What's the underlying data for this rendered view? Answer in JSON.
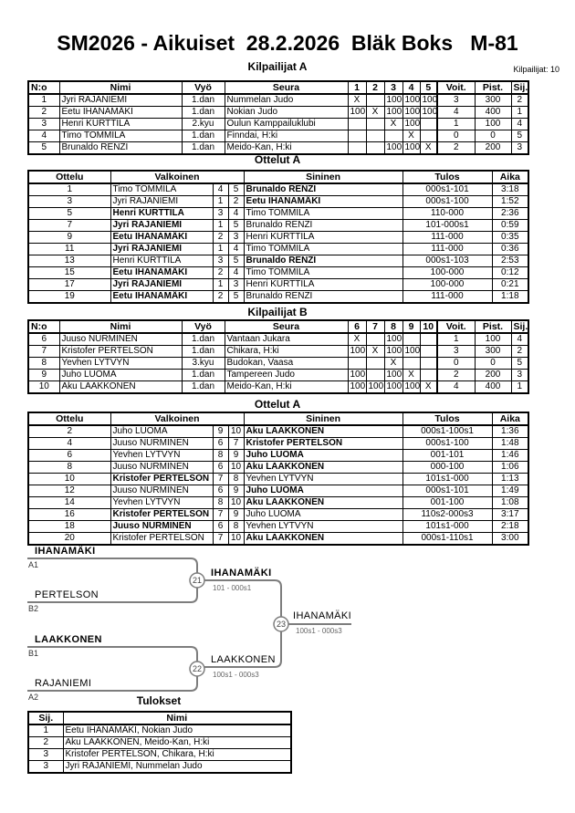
{
  "page": {
    "title": "SM2026 - Aikuiset  28.2.2026  Bläk Boks   M-81",
    "competitors_count_label": "Kilpailijat: 10"
  },
  "pool_a": {
    "title": "Kilpailijat A",
    "headers": [
      "N:o",
      "Nimi",
      "Vyö",
      "Seura",
      "1",
      "2",
      "3",
      "4",
      "5",
      "Voit.",
      "Pist.",
      "Sij."
    ],
    "rows": [
      {
        "no": "1",
        "name": "Jyri RAJANIEMI",
        "belt": "1.dan",
        "club": "Nummelan Judo",
        "r": [
          "X",
          "",
          "100",
          "100",
          "100"
        ],
        "wins": "3",
        "points": "300",
        "place": "2"
      },
      {
        "no": "2",
        "name": "Eetu IHANAMÄKI",
        "belt": "1.dan",
        "club": "Nokian Judo",
        "r": [
          "100",
          "X",
          "100",
          "100",
          "100"
        ],
        "wins": "4",
        "points": "400",
        "place": "1"
      },
      {
        "no": "3",
        "name": "Henri KURTTILA",
        "belt": "2.kyu",
        "club": "Oulun Kamppailuklubi",
        "r": [
          "",
          "",
          "X",
          "100",
          ""
        ],
        "wins": "1",
        "points": "100",
        "place": "4"
      },
      {
        "no": "4",
        "name": "Timo TOMMILA",
        "belt": "1.dan",
        "club": "Finndai, H:ki",
        "r": [
          "",
          "",
          "",
          "X",
          ""
        ],
        "wins": "0",
        "points": "0",
        "place": "5"
      },
      {
        "no": "5",
        "name": "Brunaldo RENZI",
        "belt": "1.dan",
        "club": "Meido-Kan, H:ki",
        "r": [
          "",
          "",
          "100",
          "100",
          "X"
        ],
        "wins": "2",
        "points": "200",
        "place": "3"
      }
    ]
  },
  "matches_a": {
    "title": "Ottelut A",
    "headers": [
      "Ottelu",
      "Valkoinen",
      "Sininen",
      "Tulos",
      "Aika"
    ],
    "rows": [
      {
        "no": "1",
        "white": "Timo TOMMILA",
        "white_win": false,
        "wno": "4",
        "bno": "5",
        "blue": "Brunaldo RENZI",
        "blue_win": true,
        "result": "000s1-101",
        "time": "3:18"
      },
      {
        "no": "3",
        "white": "Jyri RAJANIEMI",
        "white_win": false,
        "wno": "1",
        "bno": "2",
        "blue": "Eetu IHANAMÄKI",
        "blue_win": true,
        "result": "000s1-100",
        "time": "1:52"
      },
      {
        "no": "5",
        "white": "Henri KURTTILA",
        "white_win": true,
        "wno": "3",
        "bno": "4",
        "blue": "Timo TOMMILA",
        "blue_win": false,
        "result": "110-000",
        "time": "2:36"
      },
      {
        "no": "7",
        "white": "Jyri RAJANIEMI",
        "white_win": true,
        "wno": "1",
        "bno": "5",
        "blue": "Brunaldo RENZI",
        "blue_win": false,
        "result": "101-000s1",
        "time": "0:59"
      },
      {
        "no": "9",
        "white": "Eetu IHANAMÄKI",
        "white_win": true,
        "wno": "2",
        "bno": "3",
        "blue": "Henri KURTTILA",
        "blue_win": false,
        "result": "111-000",
        "time": "0:35"
      },
      {
        "no": "11",
        "white": "Jyri RAJANIEMI",
        "white_win": true,
        "wno": "1",
        "bno": "4",
        "blue": "Timo TOMMILA",
        "blue_win": false,
        "result": "111-000",
        "time": "0:36"
      },
      {
        "no": "13",
        "white": "Henri KURTTILA",
        "white_win": false,
        "wno": "3",
        "bno": "5",
        "blue": "Brunaldo RENZI",
        "blue_win": true,
        "result": "000s1-103",
        "time": "2:53"
      },
      {
        "no": "15",
        "white": "Eetu IHANAMÄKI",
        "white_win": true,
        "wno": "2",
        "bno": "4",
        "blue": "Timo TOMMILA",
        "blue_win": false,
        "result": "100-000",
        "time": "0:12"
      },
      {
        "no": "17",
        "white": "Jyri RAJANIEMI",
        "white_win": true,
        "wno": "1",
        "bno": "3",
        "blue": "Henri KURTTILA",
        "blue_win": false,
        "result": "100-000",
        "time": "0:21"
      },
      {
        "no": "19",
        "white": "Eetu IHANAMÄKI",
        "white_win": true,
        "wno": "2",
        "bno": "5",
        "blue": "Brunaldo RENZI",
        "blue_win": false,
        "result": "111-000",
        "time": "1:18"
      }
    ]
  },
  "pool_b": {
    "title": "Kilpailijat B",
    "headers": [
      "N:o",
      "Nimi",
      "Vyö",
      "Seura",
      "6",
      "7",
      "8",
      "9",
      "10",
      "Voit.",
      "Pist.",
      "Sij."
    ],
    "rows": [
      {
        "no": "6",
        "name": "Juuso NURMINEN",
        "belt": "1.dan",
        "club": "Vantaan Jukara",
        "r": [
          "X",
          "",
          "100",
          "",
          ""
        ],
        "wins": "1",
        "points": "100",
        "place": "4"
      },
      {
        "no": "7",
        "name": "Kristofer PERTELSON",
        "belt": "1.dan",
        "club": "Chikara, H:ki",
        "r": [
          "100",
          "X",
          "100",
          "100",
          ""
        ],
        "wins": "3",
        "points": "300",
        "place": "2"
      },
      {
        "no": "8",
        "name": "Yevhen LYTVYN",
        "belt": "3.kyu",
        "club": "Budokan, Vaasa",
        "r": [
          "",
          "",
          "X",
          "",
          ""
        ],
        "wins": "0",
        "points": "0",
        "place": "5"
      },
      {
        "no": "9",
        "name": "Juho LUOMA",
        "belt": "1.dan",
        "club": "Tampereen Judo",
        "r": [
          "100",
          "",
          "100",
          "X",
          ""
        ],
        "wins": "2",
        "points": "200",
        "place": "3"
      },
      {
        "no": "10",
        "name": "Aku LAAKKONEN",
        "belt": "1.dan",
        "club": "Meido-Kan, H:ki",
        "r": [
          "100",
          "100",
          "100",
          "100",
          "X"
        ],
        "wins": "4",
        "points": "400",
        "place": "1"
      }
    ]
  },
  "matches_b": {
    "title": "Ottelut A",
    "headers": [
      "Ottelu",
      "Valkoinen",
      "Sininen",
      "Tulos",
      "Aika"
    ],
    "rows": [
      {
        "no": "2",
        "white": "Juho LUOMA",
        "white_win": false,
        "wno": "9",
        "bno": "10",
        "blue": "Aku LAAKKONEN",
        "blue_win": true,
        "result": "000s1-100s1",
        "time": "1:36"
      },
      {
        "no": "4",
        "white": "Juuso NURMINEN",
        "white_win": false,
        "wno": "6",
        "bno": "7",
        "blue": "Kristofer PERTELSON",
        "blue_win": true,
        "result": "000s1-100",
        "time": "1:48"
      },
      {
        "no": "6",
        "white": "Yevhen LYTVYN",
        "white_win": false,
        "wno": "8",
        "bno": "9",
        "blue": "Juho LUOMA",
        "blue_win": true,
        "result": "001-101",
        "time": "1:46"
      },
      {
        "no": "8",
        "white": "Juuso NURMINEN",
        "white_win": false,
        "wno": "6",
        "bno": "10",
        "blue": "Aku LAAKKONEN",
        "blue_win": true,
        "result": "000-100",
        "time": "1:06"
      },
      {
        "no": "10",
        "white": "Kristofer PERTELSON",
        "white_win": true,
        "wno": "7",
        "bno": "8",
        "blue": "Yevhen LYTVYN",
        "blue_win": false,
        "result": "101s1-000",
        "time": "1:13"
      },
      {
        "no": "12",
        "white": "Juuso NURMINEN",
        "white_win": false,
        "wno": "6",
        "bno": "9",
        "blue": "Juho LUOMA",
        "blue_win": true,
        "result": "000s1-101",
        "time": "1:49"
      },
      {
        "no": "14",
        "white": "Yevhen LYTVYN",
        "white_win": false,
        "wno": "8",
        "bno": "10",
        "blue": "Aku LAAKKONEN",
        "blue_win": true,
        "result": "001-100",
        "time": "1:08"
      },
      {
        "no": "16",
        "white": "Kristofer PERTELSON",
        "white_win": true,
        "wno": "7",
        "bno": "9",
        "blue": "Juho LUOMA",
        "blue_win": false,
        "result": "110s2-000s3",
        "time": "3:17"
      },
      {
        "no": "18",
        "white": "Juuso NURMINEN",
        "white_win": true,
        "wno": "6",
        "bno": "8",
        "blue": "Yevhen LYTVYN",
        "blue_win": false,
        "result": "101s1-000",
        "time": "2:18"
      },
      {
        "no": "20",
        "white": "Kristofer PERTELSON",
        "white_win": false,
        "wno": "7",
        "bno": "10",
        "blue": "Aku LAAKKONEN",
        "blue_win": true,
        "result": "000s1-110s1",
        "time": "3:00"
      }
    ]
  },
  "bracket": {
    "semi1": {
      "top_name": "IHANAMÄKI",
      "top_seed": "A1",
      "bottom_name": "PERTELSON",
      "bottom_seed": "B2",
      "match_no": "21",
      "winner": "IHANAMÄKI",
      "score": "101 - 000s1"
    },
    "semi2": {
      "top_name": "LAAKKONEN",
      "top_seed": "B1",
      "bottom_name": "RAJANIEMI",
      "bottom_seed": "A2",
      "match_no": "22",
      "winner": "LAAKKONEN",
      "score": "100s1 - 000s3"
    },
    "final": {
      "match_no": "23",
      "winner": "IHANAMÄKI",
      "score": "100s1 - 000s3"
    }
  },
  "results": {
    "title": "Tulokset",
    "headers": [
      "Sij.",
      "Nimi"
    ],
    "rows": [
      {
        "place": "1",
        "name": "Eetu IHANAMÄKI, Nokian Judo"
      },
      {
        "place": "2",
        "name": "Aku LAAKKONEN, Meido-Kan, H:ki"
      },
      {
        "place": "3",
        "name": "Kristofer PERTELSON, Chikara, H:ki"
      },
      {
        "place": "3",
        "name": "Jyri RAJANIEMI, Nummelan Judo"
      }
    ]
  },
  "colors": {
    "line_gray": "#7d7d7d",
    "text_black": "#000000"
  }
}
